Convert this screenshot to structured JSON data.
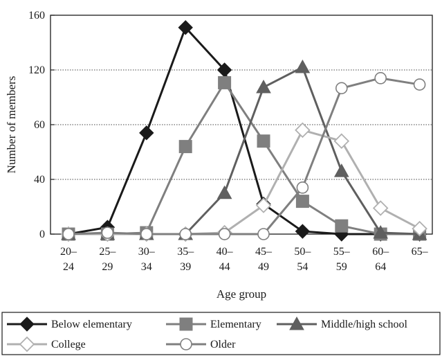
{
  "chart_data": {
    "type": "line",
    "categories": [
      [
        "20–",
        "24"
      ],
      [
        "25–",
        "29"
      ],
      [
        "30–",
        "34"
      ],
      [
        "35–",
        "39"
      ],
      [
        "40–",
        "44"
      ],
      [
        "45–",
        "49"
      ],
      [
        "50–",
        "54"
      ],
      [
        "55–",
        "59"
      ],
      [
        "60–",
        "64"
      ],
      [
        "65–",
        ""
      ]
    ],
    "xlabel": "Age group",
    "ylabel": "Number of members",
    "yticks": [
      0,
      40,
      60,
      120,
      160
    ],
    "grid": "horizontal-dotted",
    "legend_position": "bottom",
    "series": [
      {
        "name": "Below elementary",
        "marker": "diamond-filled",
        "color": "#1a1a1a",
        "values": [
          0,
          5,
          57,
          151,
          120,
          22,
          2,
          0,
          0,
          0
        ]
      },
      {
        "name": "Elementary",
        "marker": "square-filled",
        "color": "#7f7f7f",
        "values": [
          0,
          0,
          1,
          52,
          106,
          54,
          24,
          6,
          0,
          0
        ]
      },
      {
        "name": "Middle/high school",
        "marker": "triangle-filled",
        "color": "#5f5f5f",
        "values": [
          0,
          0,
          0,
          0,
          30,
          101,
          122,
          43,
          1,
          0
        ]
      },
      {
        "name": "College",
        "marker": "diamond-open",
        "color": "#b0b0b0",
        "values": [
          0,
          0,
          0,
          0,
          1,
          21,
          58,
          54,
          19,
          4
        ]
      },
      {
        "name": "Older",
        "marker": "circle-open",
        "color": "#7f7f7f",
        "values": [
          0,
          1,
          0,
          0,
          0,
          0,
          34,
          100,
          111,
          104
        ]
      }
    ]
  }
}
